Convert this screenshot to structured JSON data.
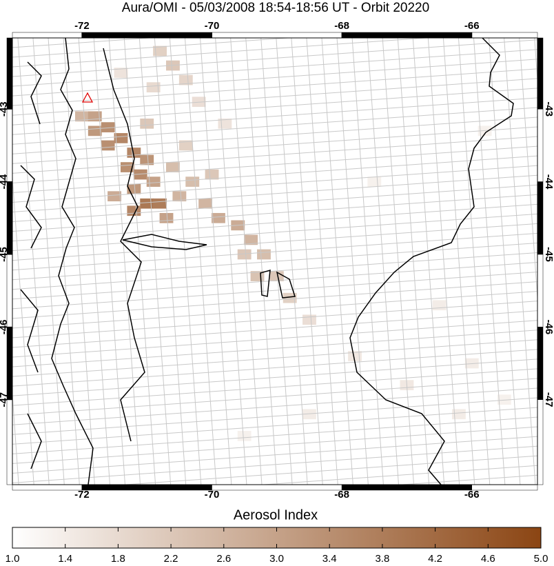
{
  "chart_data": {
    "type": "map",
    "title": "Aura/OMI - 05/03/2008 18:54-18:56 UT - Orbit 20220",
    "colorbar_label": "Aerosol Index",
    "xlim": [
      -73.07,
      -64.99
    ],
    "ylim": [
      -48.17,
      -42.02
    ],
    "xticks": [
      -72,
      -70,
      -68,
      -66
    ],
    "yticks": [
      -43,
      -44,
      -45,
      -46,
      -47
    ],
    "clim": [
      1,
      5
    ],
    "cticks": [
      {
        "value": 1,
        "label": "1.0"
      },
      1.4,
      1.8,
      2.2,
      2.6,
      {
        "value": 3,
        "label": "3.0"
      },
      3.4,
      3.8,
      4.2,
      4.6,
      {
        "value": 5,
        "label": "5.0"
      }
    ],
    "color_low": "#ffffff",
    "color_high": "#8b4513",
    "aerosol_pixels": {
      "lon": [
        -72.0,
        -71.8,
        -71.6,
        -71.8,
        -71.4,
        -71.6,
        -71.2,
        -71.0,
        -71.3,
        -71.1,
        -71.2,
        -70.9,
        -71.0,
        -70.8,
        -71.2,
        -70.7,
        -70.5,
        -70.3,
        -70.1,
        -69.9,
        -69.6,
        -69.4,
        -69.2,
        -69.5,
        -69.0,
        -69.3,
        -68.8,
        -70.6,
        -70.4,
        -70.8,
        -70.6,
        -70.4,
        -70.9,
        -71.4,
        -70.2,
        -69.8,
        -71.0,
        -71.5,
        -70.0,
        -68.5,
        -67.8,
        -67.0,
        -66.2,
        -66.5,
        -67.5,
        -65.8,
        -69.5,
        -68.5,
        -66.0,
        -65.5
      ],
      "lat": [
        -43.1,
        -43.1,
        -43.25,
        -43.3,
        -43.4,
        -43.5,
        -43.6,
        -43.7,
        -43.8,
        -43.9,
        -44.1,
        -44.0,
        -44.3,
        -44.3,
        -44.4,
        -44.5,
        -44.2,
        -44.0,
        -44.3,
        -44.5,
        -44.6,
        -44.8,
        -45.0,
        -45.0,
        -45.3,
        -45.3,
        -45.6,
        -43.8,
        -43.5,
        -42.2,
        -42.4,
        -42.6,
        -42.7,
        -42.5,
        -42.9,
        -43.2,
        -43.2,
        -44.2,
        -43.9,
        -45.9,
        -46.4,
        -46.8,
        -47.2,
        -45.7,
        -44.0,
        -43.3,
        -47.5,
        -47.2,
        -46.5,
        -47.0
      ],
      "values": [
        2.6,
        3.0,
        3.4,
        3.2,
        3.6,
        3.4,
        3.6,
        3.3,
        3.4,
        3.5,
        3.2,
        3.0,
        3.9,
        3.8,
        3.6,
        3.0,
        2.6,
        2.4,
        2.6,
        2.8,
        2.8,
        2.6,
        2.4,
        2.2,
        2.2,
        2.3,
        2.0,
        2.4,
        2.0,
        2.0,
        2.2,
        1.9,
        1.8,
        1.6,
        1.7,
        1.6,
        2.2,
        2.8,
        2.2,
        1.7,
        1.5,
        1.5,
        1.4,
        1.4,
        1.3,
        1.3,
        1.3,
        1.4,
        1.4,
        1.3
      ]
    }
  }
}
